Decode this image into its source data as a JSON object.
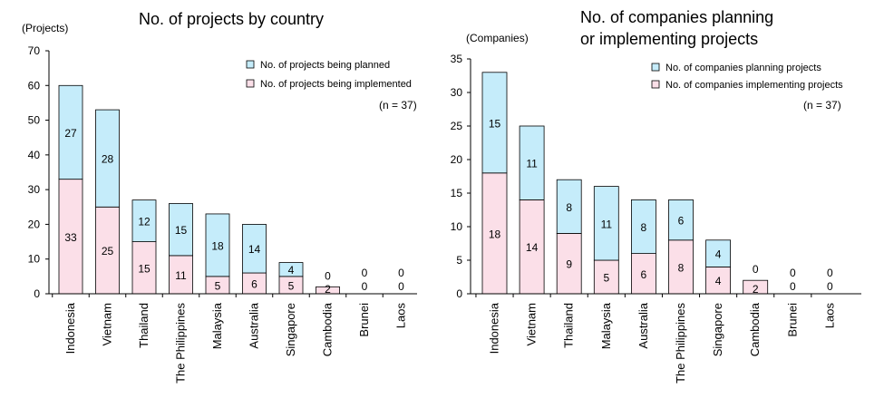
{
  "colors": {
    "planned": "#c5ecfa",
    "implemented": "#fbdfe8",
    "bar_stroke": "#000000",
    "axis": "#000000"
  },
  "chart_data": [
    {
      "type": "bar",
      "stacked": true,
      "title": "No. of projects by country",
      "ylabel": "(Projects)",
      "xlabel": "",
      "ylim": [
        0,
        70
      ],
      "yticks": [
        0,
        10,
        20,
        30,
        40,
        50,
        60,
        70
      ],
      "categories": [
        "Indonesia",
        "Vietnam",
        "Thailand",
        "The Philippines",
        "Malaysia",
        "Australia",
        "Singapore",
        "Cambodia",
        "Brunei",
        "Laos"
      ],
      "series": [
        {
          "name": "No. of projects being implemented",
          "key": "implemented",
          "values": [
            33,
            25,
            15,
            11,
            5,
            6,
            5,
            2,
            0,
            0
          ]
        },
        {
          "name": "No. of projects being planned",
          "key": "planned",
          "values": [
            27,
            28,
            12,
            15,
            18,
            14,
            4,
            0,
            0,
            0
          ]
        }
      ],
      "legend": [
        "No. of projects being planned",
        "No. of projects being implemented"
      ],
      "note": "(n = 37)",
      "grid": false
    },
    {
      "type": "bar",
      "stacked": true,
      "title_lines": [
        "No. of companies planning",
        "or implementing projects"
      ],
      "ylabel": "(Companies)",
      "xlabel": "",
      "ylim": [
        0,
        35
      ],
      "yticks": [
        0,
        5,
        10,
        15,
        20,
        25,
        30,
        35
      ],
      "categories": [
        "Indonesia",
        "Vietnam",
        "Thailand",
        "Malaysia",
        "Australia",
        "The Philippines",
        "Singapore",
        "Cambodia",
        "Brunei",
        "Laos"
      ],
      "series": [
        {
          "name": "No. of companies implementing projects",
          "key": "implemented",
          "values": [
            18,
            14,
            9,
            5,
            6,
            8,
            4,
            2,
            0,
            0
          ]
        },
        {
          "name": "No. of companies planning projects",
          "key": "planned",
          "values": [
            15,
            11,
            8,
            11,
            8,
            6,
            4,
            0,
            0,
            0
          ]
        }
      ],
      "legend": [
        "No. of companies planning projects",
        "No. of companies implementing projects"
      ],
      "note": "(n = 37)",
      "grid": false
    }
  ]
}
